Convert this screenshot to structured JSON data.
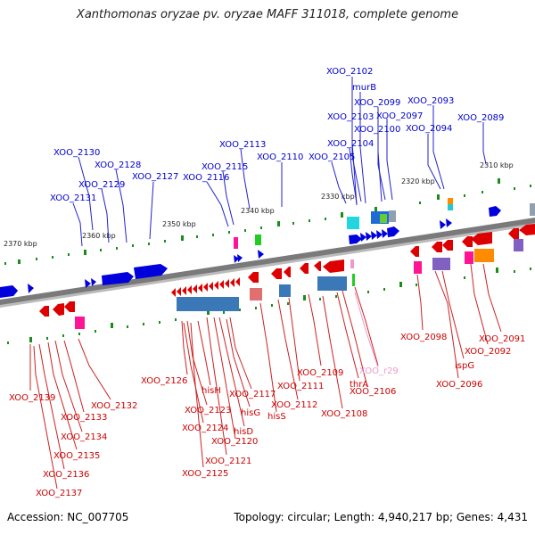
{
  "title": "Xanthomonas oryzae pv. oryzae MAFF 311018, complete genome",
  "footer": {
    "accession": "Accession: NC_007705",
    "summary": "Topology: circular; Length: 4,940,217 bp; Genes: 4,431"
  },
  "colors": {
    "forward": "#0000dd",
    "reverse": "#dd0000",
    "rna": "#ee99cc",
    "backbone": "#8a8a8a",
    "tick": "#1a8c1a"
  },
  "kbp_labels": [
    {
      "text": "2310 kbp"
    },
    {
      "text": "2320 kbp"
    },
    {
      "text": "2330 kbp"
    },
    {
      "text": "2340 kbp"
    },
    {
      "text": "2350 kbp"
    },
    {
      "text": "2360 kbp"
    },
    {
      "text": "2370 kbp"
    }
  ],
  "labels_top": [
    {
      "text": "XOO_2102"
    },
    {
      "text": "murB"
    },
    {
      "text": "XOO_2099"
    },
    {
      "text": "XOO_2093"
    },
    {
      "text": "XOO_2103"
    },
    {
      "text": "XOO_2097"
    },
    {
      "text": "XOO_2089"
    },
    {
      "text": "XOO_2100"
    },
    {
      "text": "XOO_2094"
    },
    {
      "text": "XOO_2113"
    },
    {
      "text": "XOO_2104"
    },
    {
      "text": "XOO_2130"
    },
    {
      "text": "XOO_2110"
    },
    {
      "text": "XOO_2105"
    },
    {
      "text": "XOO_2128"
    },
    {
      "text": "XOO_2115"
    },
    {
      "text": "XOO_2127"
    },
    {
      "text": "XOO_2116"
    },
    {
      "text": "XOO_2129"
    },
    {
      "text": "XOO_2131"
    }
  ],
  "labels_bottom": [
    {
      "text": "XOO_2098"
    },
    {
      "text": "XOO_2091"
    },
    {
      "text": "XOO_2092"
    },
    {
      "text": "ispG"
    },
    {
      "text": "XOO_2096"
    },
    {
      "text": "XOO_2109"
    },
    {
      "text": "XOO_r29"
    },
    {
      "text": "XOO_2126"
    },
    {
      "text": "XOO_2111"
    },
    {
      "text": "hisH"
    },
    {
      "text": "XOO_2117"
    },
    {
      "text": "thrA"
    },
    {
      "text": "XOO_2106"
    },
    {
      "text": "XOO_2139"
    },
    {
      "text": "XOO_2132"
    },
    {
      "text": "XOO_2112"
    },
    {
      "text": "XOO_2123"
    },
    {
      "text": "hisG"
    },
    {
      "text": "hisS"
    },
    {
      "text": "XOO_2108"
    },
    {
      "text": "XOO_2133"
    },
    {
      "text": "XOO_2124"
    },
    {
      "text": "hisD"
    },
    {
      "text": "XOO_2134"
    },
    {
      "text": "XOO_2120"
    },
    {
      "text": "XOO_2135"
    },
    {
      "text": "XOO_2121"
    },
    {
      "text": "XOO_2136"
    },
    {
      "text": "XOO_2125"
    },
    {
      "text": "XOO_2137"
    }
  ]
}
